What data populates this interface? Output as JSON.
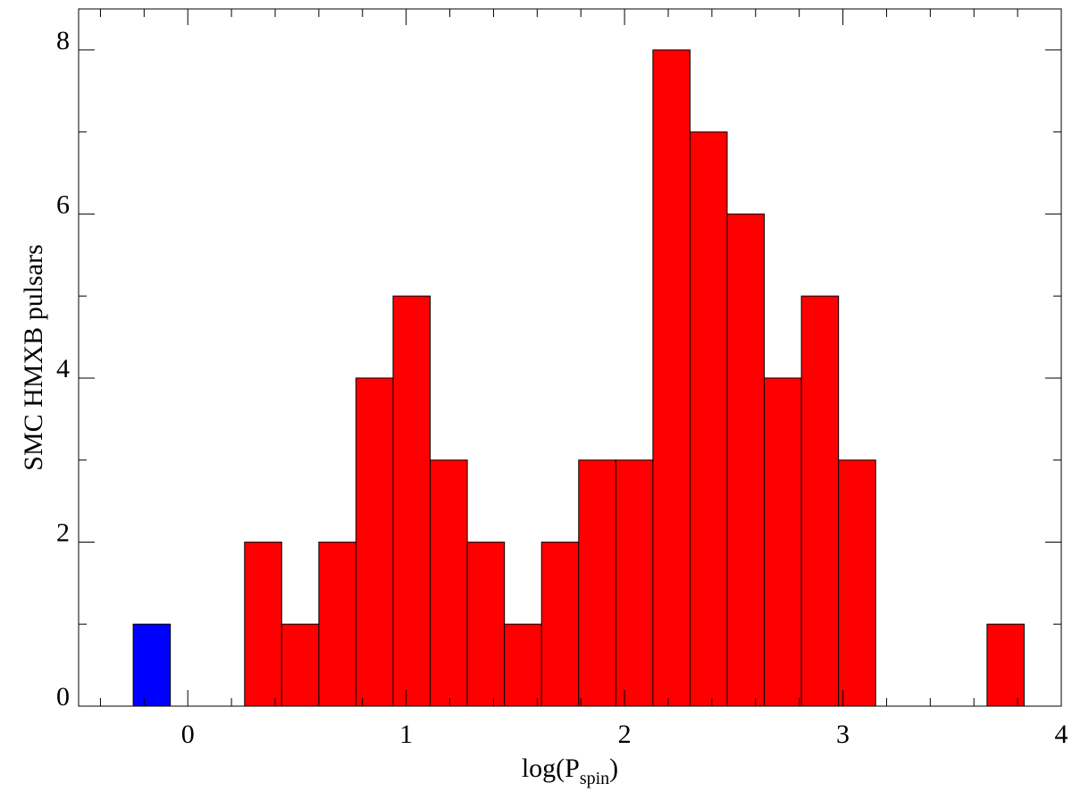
{
  "chart_data": {
    "type": "histogram",
    "xlabel_parts": [
      "log(P",
      "spin",
      ")"
    ],
    "ylabel": "SMC HMXB pulsars",
    "bins": [
      -0.25,
      -0.08,
      0.09,
      0.26,
      0.43,
      0.6,
      0.77,
      0.94,
      1.11,
      1.28,
      1.45,
      1.62,
      1.79,
      1.96,
      2.13,
      2.3,
      2.47,
      2.64,
      2.81,
      2.98,
      3.15,
      3.32,
      3.49,
      3.66,
      3.83
    ],
    "values": [
      1,
      0,
      0,
      2,
      1,
      2,
      4,
      5,
      3,
      2,
      1,
      2,
      3,
      3,
      8,
      7,
      6,
      4,
      5,
      3,
      0,
      0,
      0,
      1
    ],
    "colors": [
      "#0000ff",
      "#ff0000",
      "#ff0000",
      "#ff0000",
      "#ff0000",
      "#ff0000",
      "#ff0000",
      "#ff0000",
      "#ff0000",
      "#ff0000",
      "#ff0000",
      "#ff0000",
      "#ff0000",
      "#ff0000",
      "#ff0000",
      "#ff0000",
      "#ff0000",
      "#ff0000",
      "#ff0000",
      "#ff0000",
      "#ff0000",
      "#ff0000",
      "#ff0000",
      "#ff0000"
    ],
    "xlim": [
      -0.5,
      4
    ],
    "ylim": [
      0,
      8.5
    ],
    "xticks": [
      0,
      1,
      2,
      3,
      4
    ],
    "xminorticks": [
      -0.4,
      -0.2,
      0.2,
      0.4,
      0.6,
      0.8,
      1.2,
      1.4,
      1.6,
      1.8,
      2.2,
      2.4,
      2.6,
      2.8,
      3.2,
      3.4,
      3.6,
      3.8
    ],
    "yticks": [
      0,
      2,
      4,
      6,
      8
    ],
    "yminorticks": [
      1,
      3,
      5,
      7
    ],
    "grid": false
  }
}
